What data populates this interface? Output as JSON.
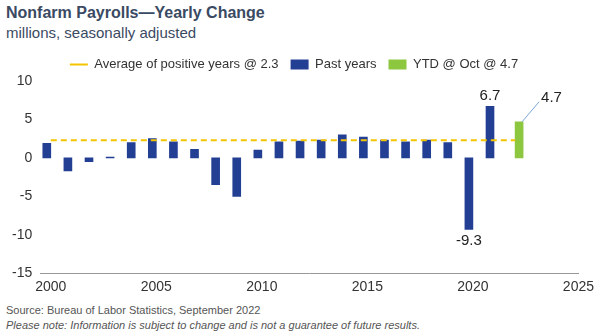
{
  "chart_data": {
    "type": "bar",
    "title": "Nonfarm Payrolls—Yearly Change",
    "subtitle": "millions, seasonally adjusted",
    "source": "Source: Bureau of Labor Statistics, September 2022",
    "note": "Please note: Information is subject to change and is not a guarantee of future results.",
    "series": [
      {
        "name": "Past years",
        "type": "bar",
        "color": "#233f94",
        "x": [
          2000,
          2001,
          2002,
          2003,
          2004,
          2005,
          2006,
          2007,
          2008,
          2009,
          2010,
          2011,
          2012,
          2013,
          2014,
          2015,
          2016,
          2017,
          2018,
          2019,
          2020,
          2021
        ],
        "values": [
          1.9,
          -1.7,
          -0.5,
          0.1,
          2.0,
          2.5,
          2.1,
          1.1,
          -3.5,
          -5.0,
          1.0,
          2.1,
          2.2,
          2.3,
          3.0,
          2.7,
          2.3,
          2.1,
          2.3,
          2.0,
          -9.3,
          6.7
        ],
        "value_labels": [
          null,
          null,
          null,
          null,
          null,
          null,
          null,
          null,
          null,
          null,
          null,
          null,
          null,
          null,
          null,
          null,
          null,
          null,
          null,
          null,
          "-9.3",
          "6.7"
        ]
      },
      {
        "name": "YTD @ Oct @ 4.7",
        "type": "bar",
        "color": "#8dc63f",
        "x": [
          2022
        ],
        "values": [
          4.7
        ],
        "value_labels": [
          "4.7"
        ]
      },
      {
        "name": "Average of positive years @ 2.3",
        "type": "line",
        "line_style": "dashed",
        "color": "#f5c400",
        "x": [
          2000,
          2022
        ],
        "values": [
          2.3,
          2.3
        ]
      }
    ],
    "xlim": [
      1999.5,
      2025
    ],
    "xticks": [
      2000,
      2005,
      2010,
      2015,
      2020,
      2025
    ],
    "ylim": [
      -15,
      10
    ],
    "yticks": [
      -15,
      -10,
      -5,
      0,
      5,
      10
    ],
    "grid": false,
    "legend": "top"
  }
}
